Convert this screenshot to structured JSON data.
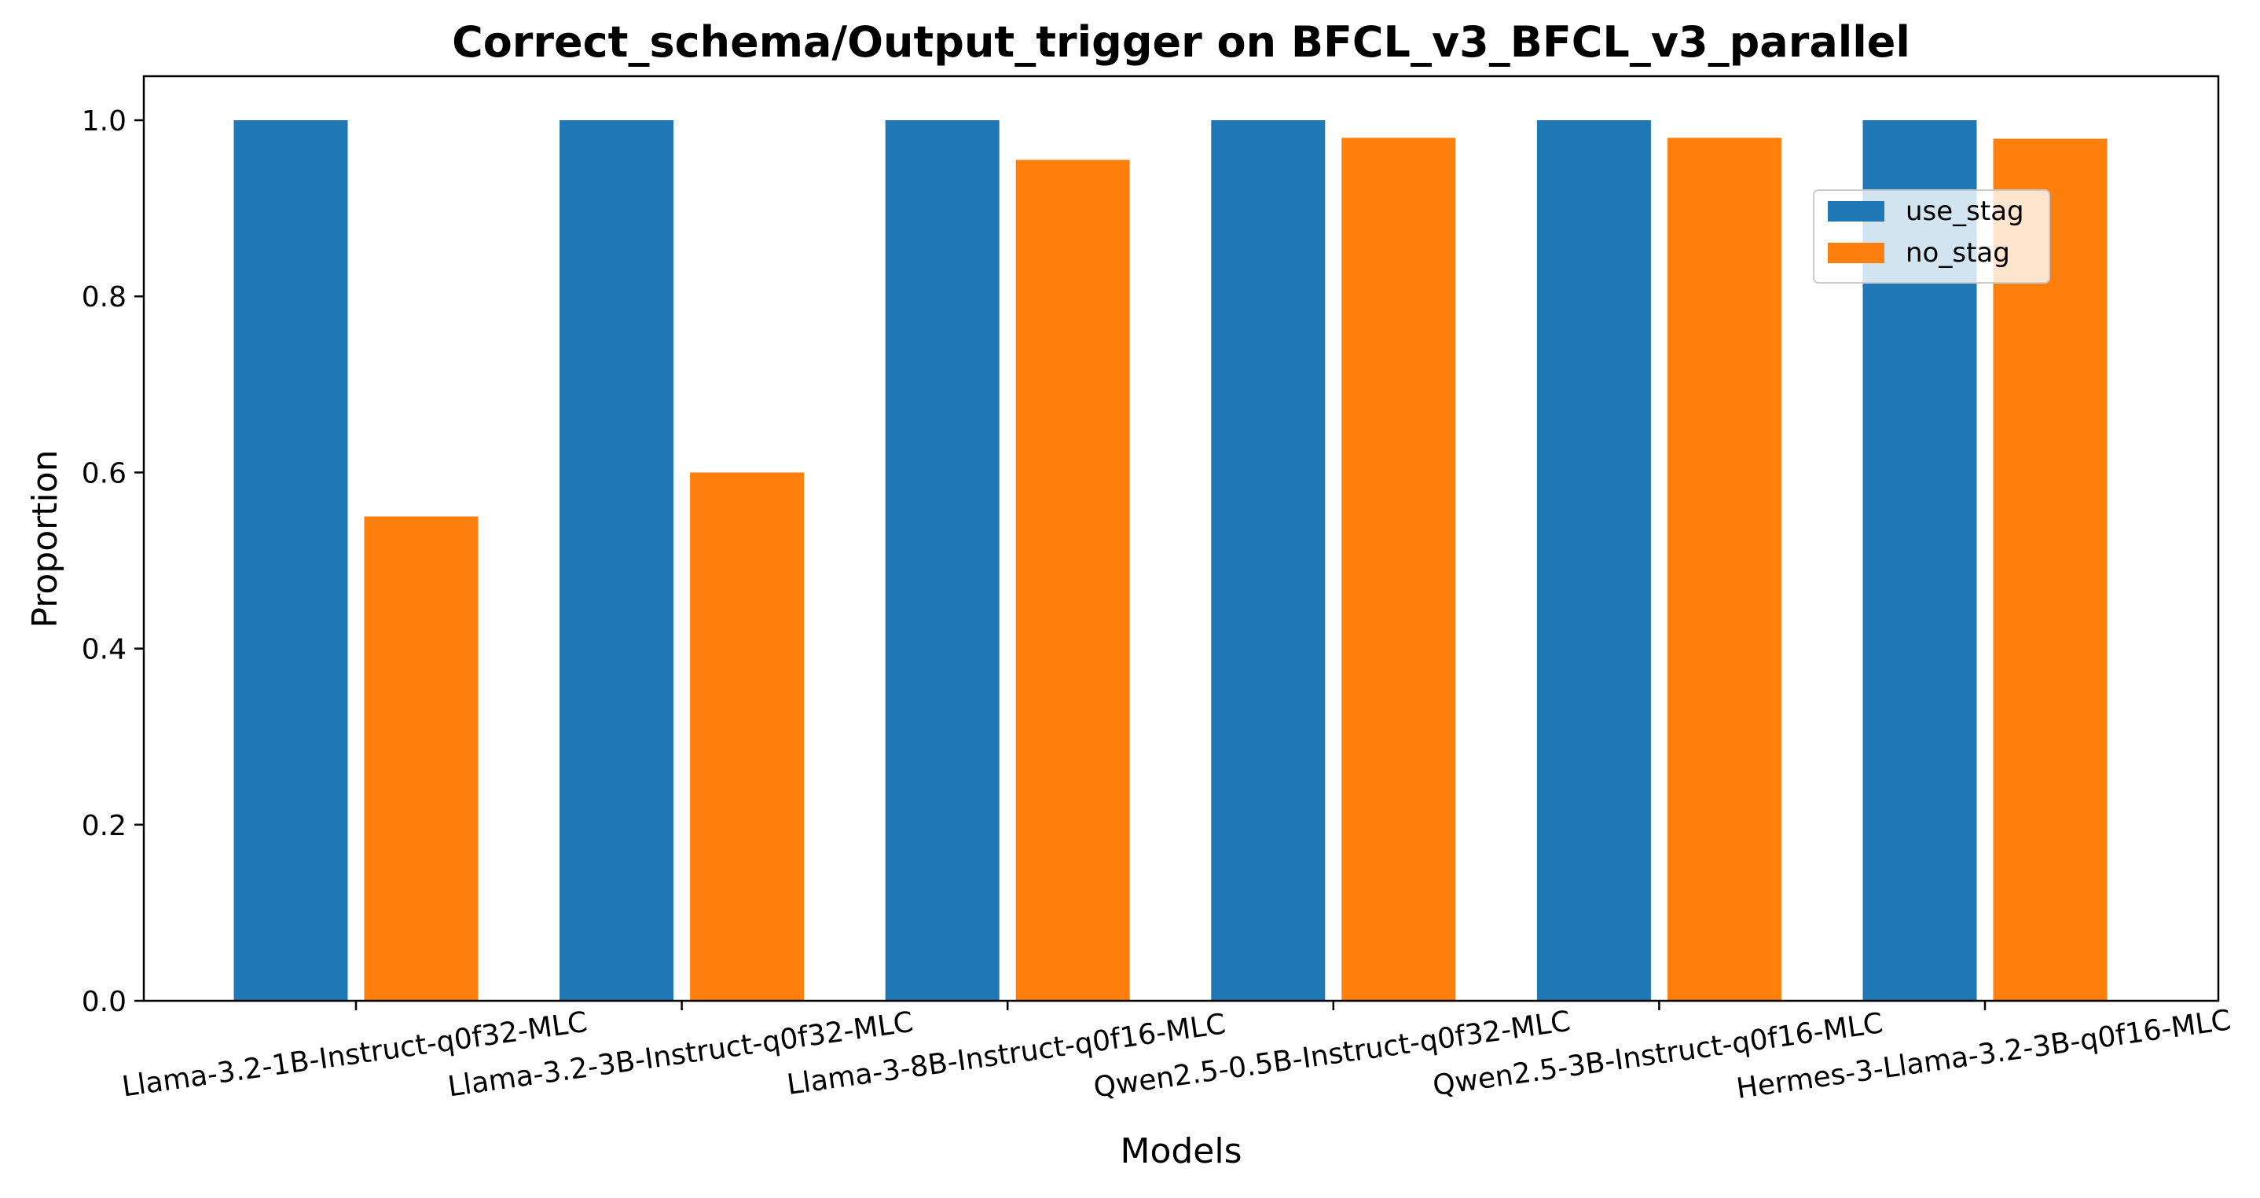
{
  "chart_data": {
    "type": "bar",
    "title": "Correct_schema/Output_trigger on BFCL_v3_BFCL_v3_parallel",
    "xlabel": "Models",
    "ylabel": "Proportion",
    "categories": [
      "Llama-3.2-1B-Instruct-q0f32-MLC",
      "Llama-3.2-3B-Instruct-q0f32-MLC",
      "Llama-3-8B-Instruct-q0f16-MLC",
      "Qwen2.5-0.5B-Instruct-q0f32-MLC",
      "Qwen2.5-3B-Instruct-q0f16-MLC",
      "Hermes-3-Llama-3.2-3B-q0f16-MLC"
    ],
    "series": [
      {
        "name": "use_stag",
        "color": "#1f77b4",
        "values": [
          1.0,
          1.0,
          1.0,
          1.0,
          1.0,
          1.0
        ]
      },
      {
        "name": "no_stag",
        "color": "#ff7f0e",
        "values": [
          0.55,
          0.6,
          0.955,
          0.98,
          0.98,
          0.979
        ]
      }
    ],
    "ylim": [
      0,
      1.05
    ],
    "yticks": [
      "0.0",
      "0.2",
      "0.4",
      "0.6",
      "0.8",
      "1.0"
    ],
    "grid": false,
    "legend_position": "upper right"
  }
}
